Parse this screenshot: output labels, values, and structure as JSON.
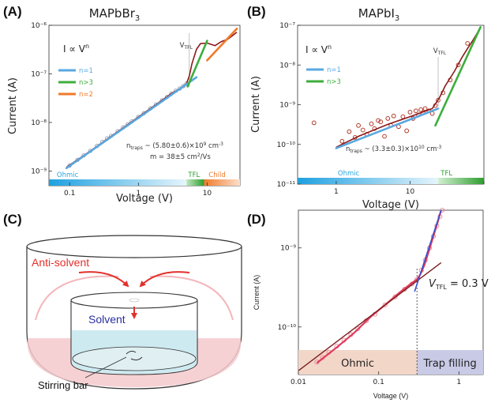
{
  "panels": {
    "a": {
      "label": "(A)",
      "title": "MAPbBr",
      "title_sub": "3"
    },
    "b": {
      "label": "(B)",
      "title": "MAPbI",
      "title_sub": "3"
    },
    "c": {
      "label": "(C)"
    },
    "d": {
      "label": "(D)"
    }
  },
  "colors": {
    "n1": "#5aa8e0",
    "n3": "#3dae3d",
    "n2": "#f07a2a",
    "points": "#b33a2a",
    "ohmic_bar": "#2aa6e0",
    "tfl_bar": "#3dae3d",
    "child_bar": "#f07a2a",
    "fitD": "#7a1f1f",
    "blueD": "#3a4fd0",
    "redD": "#e03a5a"
  },
  "common": {
    "xlabel": "Voltage (V)",
    "ylabel": "Current (A)",
    "law_main": "I ∝ V",
    "law_sup": "n",
    "vtfl_main": "V",
    "vtfl_sub": "TFL"
  },
  "chart_data": [
    {
      "panel": "A",
      "type": "scatter",
      "title": "MAPbBr3",
      "xlabel": "Voltage (V)",
      "ylabel": "Current (A)",
      "xscale": "log",
      "yscale": "log",
      "xlim": [
        0.05,
        30
      ],
      "ylim": [
        5e-10,
        1e-06
      ],
      "xticks": [
        "0.1",
        "1",
        "10"
      ],
      "yticks": [
        "10⁻⁹",
        "10⁻⁸",
        "10⁻⁷",
        "10⁻⁶"
      ],
      "series": [
        {
          "name": "n=1",
          "color_key": "n1",
          "x": [
            0.09,
            7
          ],
          "y": [
            1.15e-09,
            8.5e-08
          ]
        },
        {
          "name": "n>3",
          "color_key": "n3",
          "x": [
            5.2,
            10
          ],
          "y": [
            5.5e-08,
            4.8e-07
          ]
        },
        {
          "name": "n=2",
          "color_key": "n2",
          "x": [
            10,
            27
          ],
          "y": [
            1.9e-07,
            8.5e-07
          ]
        }
      ],
      "fit_x": [
        0.09,
        0.2,
        0.5,
        1,
        2,
        3,
        4,
        5,
        5.5,
        6,
        7,
        8,
        10,
        13,
        16,
        20,
        24,
        27
      ],
      "fit_y": [
        1.2e-09,
        2.6e-09,
        6.5e-09,
        1.3e-08,
        2.6e-08,
        3.9e-08,
        5e-08,
        6.3e-08,
        9e-08,
        1.6e-07,
        3.2e-07,
        4.2e-07,
        4.3e-07,
        3.8e-07,
        4.6e-07,
        5.2e-07,
        6.3e-07,
        7.2e-07
      ],
      "points_x": [
        0.1,
        0.13,
        0.16,
        0.2,
        0.25,
        0.3,
        0.35,
        0.4,
        0.5,
        0.6,
        0.7,
        0.8,
        1.0,
        1.2,
        1.5,
        1.8,
        2.2,
        2.6,
        3.0,
        3.5,
        4.0,
        4.5,
        5.0
      ],
      "points_y": [
        1.3e-09,
        1.7e-09,
        2.1e-09,
        2.6e-09,
        3.3e-09,
        4e-09,
        4.7e-09,
        5.3e-09,
        6.6e-09,
        7.9e-09,
        9.2e-09,
        1.05e-08,
        1.3e-08,
        1.55e-08,
        1.95e-08,
        2.35e-08,
        2.85e-08,
        3.35e-08,
        3.9e-08,
        4.5e-08,
        5e-08,
        5.6e-08,
        6.3e-08
      ],
      "vtfl": 5.5,
      "regions": [
        {
          "label": "Ohmic",
          "x": [
            0.05,
            5
          ]
        },
        {
          "label": "TFL",
          "x": [
            5,
            9
          ]
        },
        {
          "label": "Child",
          "x": [
            9,
            30
          ]
        }
      ],
      "ann1": "n",
      "ann1_sub": "traps",
      "ann1_rest": " ~ (5.80±0.6)×10",
      "ann1_exp": "9",
      "ann1_unit": " cm",
      "ann1_unit_exp": "-3",
      "ann2": "m = 38±5 cm",
      "ann2_exp": "2",
      "ann2_rest": "/Vs"
    },
    {
      "panel": "B",
      "type": "scatter",
      "title": "MAPbI3",
      "xlabel": "Voltage (V)",
      "ylabel": "Current (A)",
      "xscale": "log",
      "yscale": "log",
      "xlim": [
        0.3,
        100
      ],
      "ylim": [
        1e-11,
        1e-07
      ],
      "xticks": [
        "1",
        "10",
        ""
      ],
      "yticks": [
        "10⁻¹¹",
        "10⁻¹⁰",
        "10⁻⁹",
        "10⁻⁸",
        "10⁻⁷"
      ],
      "series": [
        {
          "name": "n=1",
          "color_key": "n1",
          "x": [
            1,
            24
          ],
          "y": [
            8e-11,
            8e-10
          ]
        },
        {
          "name": "n>3",
          "color_key": "n3",
          "x": [
            22,
            90
          ],
          "y": [
            3e-10,
            9e-08
          ]
        }
      ],
      "fit_x": [
        1,
        2,
        5,
        10,
        20,
        25,
        30,
        40,
        50,
        60,
        70,
        80,
        90
      ],
      "fit_y": [
        8.5e-11,
        1.6e-10,
        3.2e-10,
        5e-10,
        8e-10,
        1.5e-09,
        3e-09,
        7e-09,
        1.5e-08,
        2.6e-08,
        4e-08,
        6e-08,
        9e-08
      ],
      "points_x": [
        0.5,
        1.2,
        1.5,
        1.8,
        2.0,
        2.3,
        2.6,
        3.0,
        3.3,
        3.7,
        4.0,
        4.5,
        5.0,
        5.5,
        6.0,
        7.0,
        8.0,
        9.0,
        10,
        11,
        12,
        13,
        14,
        15,
        16,
        18,
        20,
        22,
        24,
        28,
        35,
        45,
        60
      ],
      "points_y": [
        3.5e-10,
        1.2e-10,
        2.1e-10,
        1.5e-10,
        3e-10,
        2.3e-10,
        1.8e-10,
        3.3e-10,
        2.5e-10,
        4e-10,
        3.7e-10,
        1.6e-10,
        4.5e-10,
        3e-10,
        5.2e-10,
        2.8e-10,
        5e-10,
        2.2e-10,
        6.5e-10,
        4.5e-10,
        7e-10,
        5.5e-10,
        7.5e-10,
        6.3e-10,
        8e-10,
        7e-10,
        6e-10,
        9.5e-10,
        1.3e-09,
        2e-09,
        4.2e-09,
        1e-08,
        3.5e-08
      ],
      "vtfl": 24,
      "regions": [
        {
          "label": "Ohmic",
          "x": [
            0.3,
            24
          ]
        },
        {
          "label": "TFL",
          "x": [
            24,
            100
          ]
        }
      ],
      "ann1": "n",
      "ann1_sub": "traps",
      "ann1_rest": " ~ (3.3±0.3)×10",
      "ann1_exp": "10",
      "ann1_unit": " cm",
      "ann1_unit_exp": "-3"
    },
    {
      "panel": "D",
      "type": "scatter",
      "xlabel": "Voltage (V)",
      "ylabel": "Current (A)",
      "xscale": "log",
      "yscale": "log",
      "xlim": [
        0.01,
        2
      ],
      "ylim": [
        2.5e-11,
        3e-09
      ],
      "xticks": [
        "0.01",
        "0.1",
        "1"
      ],
      "yticks": [
        "10⁻¹⁰",
        "10⁻⁹"
      ],
      "fit_ohmic_x": [
        0.01,
        0.6
      ],
      "fit_ohmic_y": [
        2.8e-11,
        6.5e-10
      ],
      "fit_tfl_x": [
        0.28,
        0.6
      ],
      "fit_tfl_y": [
        2.8e-10,
        3e-09
      ],
      "red_x": [
        0.017,
        0.03,
        0.05,
        0.08,
        0.12,
        0.18,
        0.25,
        0.3,
        0.33,
        0.37,
        0.42,
        0.48,
        0.55,
        0.6
      ],
      "red_y": [
        3.5e-11,
        5.5e-11,
        8.5e-11,
        1.35e-10,
        1.9e-10,
        2.7e-10,
        3.5e-10,
        4e-10,
        4.6e-10,
        6e-10,
        9e-10,
        1.4e-09,
        2.2e-09,
        3e-09
      ],
      "points_x": [
        0.017,
        0.02,
        0.024,
        0.03,
        0.037,
        0.045,
        0.055,
        0.07,
        0.09,
        0.12,
        0.16,
        0.21,
        0.26,
        0.3,
        0.34,
        0.38,
        0.43,
        0.48,
        0.53,
        0.58,
        0.62
      ],
      "points_y": [
        3.6e-11,
        4.1e-11,
        4.8e-11,
        5.7e-11,
        6.8e-11,
        8e-11,
        9.5e-11,
        1.2e-10,
        1.45e-10,
        1.9e-10,
        2.4e-10,
        3e-10,
        3.5e-10,
        4e-10,
        5.2e-10,
        7e-10,
        1e-09,
        1.4e-09,
        1.9e-09,
        2.5e-09,
        3e-09
      ],
      "vtfl": 0.3,
      "vtfl_text_main": "V",
      "vtfl_text_sub": "TFL",
      "vtfl_text_rest": " = 0.3 V",
      "regions": [
        {
          "label": "Ohmic",
          "x": [
            0.01,
            0.3
          ]
        },
        {
          "label": "Trap filling",
          "x": [
            0.3,
            2
          ]
        }
      ]
    }
  ],
  "diagram": {
    "antisolvent_label": "Anti-solvent",
    "solvent_label": "Solvent",
    "stirring_label": "Stirring bar"
  }
}
